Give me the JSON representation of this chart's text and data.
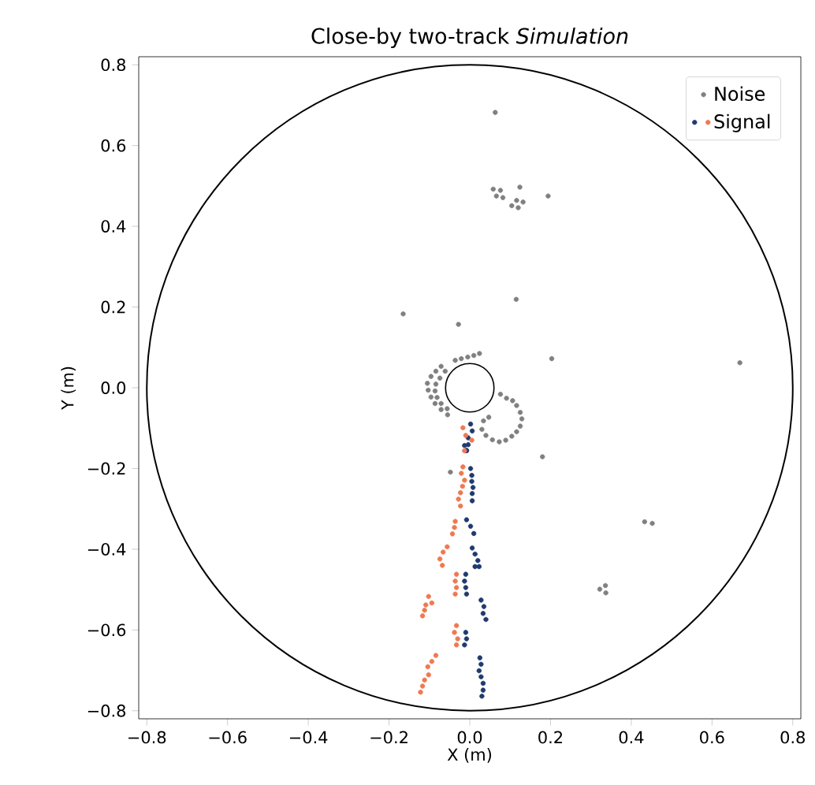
{
  "chart_data": {
    "type": "scatter",
    "title": "Close-by two-track *Simulation*",
    "xlabel": "X (m)",
    "ylabel": "Y (m)",
    "marker": "circle",
    "legend": "top right",
    "grid": false,
    "xlim": [
      -0.82,
      0.82
    ],
    "ylim": [
      -0.82,
      0.82
    ],
    "xticks": [
      {
        "value": -0.8,
        "label": "−0.8"
      },
      {
        "value": -0.6,
        "label": "−0.6"
      },
      {
        "value": -0.4,
        "label": "−0.4"
      },
      {
        "value": -0.2,
        "label": "−0.2"
      },
      {
        "value": 0,
        "label": "0.0"
      },
      {
        "value": 0.2,
        "label": "0.2"
      },
      {
        "value": 0.4,
        "label": "0.4"
      },
      {
        "value": 0.6,
        "label": "0.6"
      },
      {
        "value": 0.8,
        "label": "0.8"
      }
    ],
    "yticks": [
      {
        "value": -0.8,
        "label": "−0.8"
      },
      {
        "value": -0.6,
        "label": "−0.6"
      },
      {
        "value": -0.4,
        "label": "−0.4"
      },
      {
        "value": -0.2,
        "label": "−0.2"
      },
      {
        "value": 0,
        "label": "0.0"
      },
      {
        "value": 0.2,
        "label": "0.2"
      },
      {
        "value": 0.4,
        "label": "0.4"
      },
      {
        "value": 0.6,
        "label": "0.6"
      },
      {
        "value": 0.8,
        "label": "0.8"
      }
    ],
    "series": [
      {
        "name": "Noise",
        "color": "#808080",
        "x": [
          0.063,
          0.058,
          0.076,
          0.066,
          0.082,
          0.124,
          0.116,
          0.132,
          0.104,
          0.12,
          0.194,
          0.115,
          -0.165,
          -0.028,
          0.203,
          -0.048,
          0.18,
          0.669,
          0.433,
          0.452,
          0.322,
          0.336,
          0.337,
          -0.036,
          -0.021,
          -0.005,
          0.01,
          0.024,
          -0.071,
          -0.084,
          -0.096,
          -0.105,
          -0.103,
          -0.096,
          -0.086,
          -0.071,
          -0.055,
          -0.061,
          -0.074,
          -0.084,
          -0.086,
          -0.081,
          -0.071,
          -0.056,
          0.076,
          0.091,
          0.106,
          0.116,
          0.125,
          0.129,
          0.125,
          0.116,
          0.104,
          0.089,
          0.073,
          0.056,
          0.04,
          0.03,
          0.034,
          0.047
        ],
        "values": [
          0.682,
          0.492,
          0.489,
          0.475,
          0.471,
          0.497,
          0.464,
          0.46,
          0.451,
          0.446,
          0.475,
          0.219,
          0.183,
          0.157,
          0.072,
          -0.209,
          -0.171,
          0.062,
          -0.332,
          -0.336,
          -0.499,
          -0.49,
          -0.508,
          0.068,
          0.072,
          0.076,
          0.08,
          0.085,
          0.053,
          0.041,
          0.028,
          0.011,
          -0.006,
          -0.023,
          -0.039,
          -0.054,
          -0.067,
          0.041,
          0.024,
          0.009,
          -0.008,
          -0.024,
          -0.039,
          -0.052,
          -0.016,
          -0.026,
          -0.032,
          -0.044,
          -0.061,
          -0.077,
          -0.095,
          -0.109,
          -0.12,
          -0.13,
          -0.134,
          -0.129,
          -0.118,
          -0.103,
          -0.082,
          -0.073
        ]
      },
      {
        "name": "Signal",
        "colors": [
          "#1f3a6e",
          "#1f3a6e",
          "#1f3a6e",
          "#1f3a6e",
          "#1f3a6e",
          "#1f3a6e",
          "#1f3a6e",
          "#1f3a6e",
          "#1f3a6e",
          "#1f3a6e",
          "#1f3a6e",
          "#1f3a6e",
          "#1f3a6e",
          "#1f3a6e",
          "#1f3a6e",
          "#1f3a6e",
          "#1f3a6e",
          "#1f3a6e",
          "#1f3a6e",
          "#1f3a6e",
          "#1f3a6e",
          "#1f3a6e",
          "#1f3a6e",
          "#1f3a6e",
          "#1f3a6e",
          "#1f3a6e",
          "#1f3a6e",
          "#1f3a6e",
          "#1f3a6e",
          "#1f3a6e",
          "#1f3a6e",
          "#1f3a6e",
          "#1f3a6e",
          "#1f3a6e",
          "#1f3a6e",
          "#1f3a6e",
          "#1f3a6e",
          "#1f3a6e",
          "#1f3a6e",
          "#f07850",
          "#f07850",
          "#f07850",
          "#f07850",
          "#f07850",
          "#f07850",
          "#f07850",
          "#f07850",
          "#f07850",
          "#f07850",
          "#f07850",
          "#f07850",
          "#f07850",
          "#f07850",
          "#f07850",
          "#f07850",
          "#f07850",
          "#f07850",
          "#f07850",
          "#f07850",
          "#f07850",
          "#f07850",
          "#f07850",
          "#f07850",
          "#f07850",
          "#f07850",
          "#f07850",
          "#f07850",
          "#f07850",
          "#f07850",
          "#f07850",
          "#f07850",
          "#f07850",
          "#f07850",
          "#f07850",
          "#f07850",
          "#f07850",
          "#f07850"
        ],
        "x": [
          0.002,
          0.006,
          -0.004,
          -0.013,
          -0.008,
          -0.004,
          -0.008,
          0.002,
          0.005,
          0.005,
          0.008,
          0.006,
          0.006,
          -0.008,
          0.002,
          0.01,
          0.006,
          0.013,
          0.02,
          0.023,
          0.013,
          -0.01,
          -0.013,
          -0.01,
          -0.008,
          0.028,
          0.035,
          0.033,
          0.04,
          -0.01,
          -0.008,
          -0.013,
          0.025,
          0.028,
          0.023,
          0.028,
          0.033,
          0.033,
          0.03,
          -0.017,
          -0.01,
          0.005,
          -0.013,
          -0.017,
          -0.021,
          -0.013,
          -0.018,
          -0.023,
          -0.028,
          -0.023,
          -0.036,
          -0.038,
          -0.043,
          -0.056,
          -0.066,
          -0.074,
          -0.068,
          -0.033,
          -0.036,
          -0.033,
          -0.036,
          -0.102,
          -0.094,
          -0.109,
          -0.112,
          -0.117,
          -0.033,
          -0.038,
          -0.03,
          -0.033,
          -0.084,
          -0.094,
          -0.104,
          -0.102,
          -0.112,
          -0.117,
          -0.122
        ],
        "values": [
          -0.09,
          -0.107,
          -0.124,
          -0.143,
          -0.155,
          -0.141,
          -0.156,
          -0.2,
          -0.217,
          -0.232,
          -0.247,
          -0.262,
          -0.28,
          -0.327,
          -0.343,
          -0.361,
          -0.397,
          -0.412,
          -0.428,
          -0.443,
          -0.443,
          -0.462,
          -0.479,
          -0.495,
          -0.511,
          -0.526,
          -0.542,
          -0.559,
          -0.574,
          -0.606,
          -0.622,
          -0.637,
          -0.669,
          -0.685,
          -0.701,
          -0.716,
          -0.732,
          -0.749,
          -0.764,
          -0.099,
          -0.118,
          -0.13,
          -0.156,
          -0.196,
          -0.212,
          -0.229,
          -0.244,
          -0.26,
          -0.276,
          -0.293,
          -0.331,
          -0.346,
          -0.362,
          -0.394,
          -0.407,
          -0.424,
          -0.44,
          -0.462,
          -0.479,
          -0.495,
          -0.511,
          -0.517,
          -0.533,
          -0.538,
          -0.551,
          -0.565,
          -0.589,
          -0.606,
          -0.622,
          -0.637,
          -0.663,
          -0.678,
          -0.691,
          -0.711,
          -0.724,
          -0.739,
          -0.754
        ]
      }
    ]
  }
}
